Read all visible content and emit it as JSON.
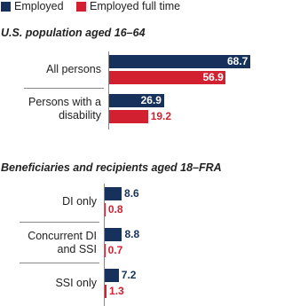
{
  "chart_data": [
    {
      "type": "bar",
      "orientation": "horizontal",
      "title": "U.S. population aged 16–64",
      "categories": [
        "All persons",
        "Persons with a disability"
      ],
      "series": [
        {
          "name": "Employed",
          "color": "#16325c",
          "values": [
            68.7,
            26.9
          ]
        },
        {
          "name": "Employed full time",
          "color": "#d32030",
          "values": [
            56.9,
            19.2
          ]
        }
      ],
      "xlim": [
        0,
        70
      ]
    },
    {
      "type": "bar",
      "orientation": "horizontal",
      "title": "Beneficiaries and recipients aged 18–FRA",
      "categories": [
        "DI only",
        "Concurrent DI and SSI",
        "SSI only"
      ],
      "series": [
        {
          "color": "#16325c",
          "values": [
            8.6,
            8.8,
            7.2
          ]
        },
        {
          "color": "#d32030",
          "values": [
            0.8,
            0.7,
            1.3
          ]
        }
      ],
      "xlim": [
        0,
        70
      ]
    }
  ]
}
